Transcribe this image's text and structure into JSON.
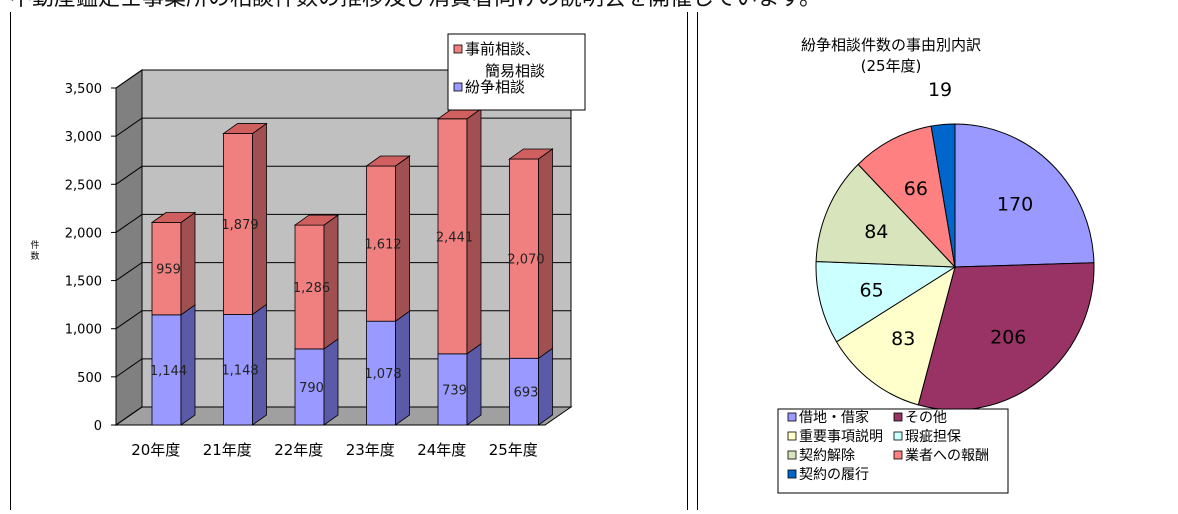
{
  "header_text": "不動産鑑定士事業所の相談件数の推移及び消費者向けの説明会を開催しています。",
  "colors": {
    "bar_top": "#f08080",
    "bar_top_side": "#a05050",
    "bar_top_cap": "#d06060",
    "bar_bottom": "#9999ff",
    "bar_bottom_side": "#5a5aa8",
    "wall": "#c0c0c0",
    "wall_side": "#808080",
    "floor": "#a0a0a0"
  },
  "chart_data": [
    {
      "type": "bar",
      "stacked": true,
      "three_d": true,
      "categories": [
        "20年度",
        "21年度",
        "22年度",
        "23年度",
        "24年度",
        "25年度"
      ],
      "series": [
        {
          "name": "紛争相談",
          "values": [
            1144,
            1148,
            790,
            1078,
            739,
            693
          ],
          "labels": [
            "1,144",
            "1,148",
            "790",
            "1,078",
            "739",
            "693"
          ]
        },
        {
          "name": "事前相談、簡易相談",
          "values": [
            959,
            1879,
            1286,
            1612,
            2441,
            2070
          ],
          "labels": [
            "959",
            "1,879",
            "1,286",
            "1,612",
            "2,441",
            "2,070"
          ]
        }
      ],
      "ylabel": "件数",
      "ylim": [
        0,
        3500
      ],
      "yticks": [
        "0",
        "500",
        "1,000",
        "1,500",
        "2,000",
        "2,500",
        "3,000",
        "3,500"
      ],
      "grid": true,
      "legend_position": "top-right"
    },
    {
      "type": "pie",
      "title": "紛争相談件数の事由別内訳",
      "subtitle": "(25年度)",
      "slices": [
        {
          "label": "借地・借家",
          "value": 170,
          "color": "#9999ff"
        },
        {
          "label": "その他",
          "value": 206,
          "color": "#993366"
        },
        {
          "label": "重要事項説明",
          "value": 83,
          "color": "#ffffcc"
        },
        {
          "label": "瑕疵担保",
          "value": 65,
          "color": "#ccffff"
        },
        {
          "label": "契約解除",
          "value": 84,
          "color": "#d8e4bc"
        },
        {
          "label": "業者への報酬",
          "value": 66,
          "color": "#ff8080"
        },
        {
          "label": "契約の履行",
          "value": 19,
          "color": "#0066cc"
        }
      ],
      "legend_position": "bottom"
    }
  ]
}
